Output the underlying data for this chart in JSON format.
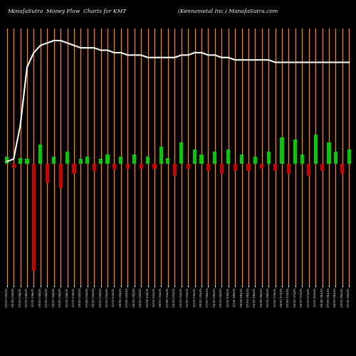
{
  "title_left": "ManafaSutra  Money Flow  Charts for KMT",
  "title_right": "(Kennametal Inc.) ManafaSutra.com",
  "background_color": "#000000",
  "bar_color_positive": "#00cc00",
  "bar_color_negative": "#cc0000",
  "line_color": "#ffffff",
  "orange_line_color": "#ff8800",
  "categories": [
    "07/07 03&05",
    "06/04 03&05",
    "03/01 04&05",
    "01/07 04&05",
    "11/05 04&05",
    "09/03 04&05",
    "07/02 04&05",
    "05/07 04&05",
    "03/05 04&05",
    "01/02 04&05",
    "11/07 03&05",
    "09/05 03&05",
    "07/04 03&05",
    "05/02 03&05",
    "03/07 03&05",
    "01/03 03&05",
    "11/01 02&05",
    "09/06 02&05",
    "07/05 02&05",
    "05/03 02&05",
    "03/01 02&05",
    "01/04 02&05",
    "11/02 01&05",
    "09/07 01&05",
    "07/06 01&05",
    "05/04 01&05",
    "03/02 01&05",
    "01/05 01&05",
    "11/03 00&05",
    "09/01 00&05",
    "07/07 99&05",
    "05/05 99&05",
    "03/03 99&05",
    "01/01 99&05",
    "11/06 98&05",
    "09/04 98&05",
    "07/03 98&05",
    "05/01 98&05",
    "03/06 98&05",
    "01/02 98&05",
    "11/07 97&05",
    "09/05 97&05",
    "07/04 97&05",
    "05/02 97&05",
    "03/07 97&05",
    "01/03 97&05",
    "11/01 96&05",
    "09/06 96&05",
    "07/05 96&05",
    "05/03 96&05",
    "03/01 96&05",
    "01/05 96&05"
  ],
  "bar_heights": [
    1.5,
    -0.8,
    1.2,
    1.0,
    -22.0,
    4.0,
    -4.0,
    1.5,
    -5.0,
    2.5,
    -2.0,
    1.0,
    1.5,
    -1.5,
    1.0,
    2.0,
    -1.2,
    1.5,
    -1.0,
    2.0,
    -1.0,
    1.5,
    -1.0,
    3.5,
    1.2,
    -2.5,
    4.5,
    -1.0,
    3.0,
    2.0,
    -1.5,
    2.5,
    -2.0,
    3.0,
    -1.5,
    2.0,
    -1.5,
    1.5,
    -1.0,
    2.5,
    -1.5,
    5.5,
    -2.0,
    5.0,
    2.0,
    -2.5,
    6.0,
    -1.5,
    4.5,
    2.5,
    -2.0,
    3.0
  ],
  "price_line": [
    0.5,
    1.0,
    8.0,
    20.0,
    23.0,
    24.5,
    25.0,
    25.5,
    25.5,
    25.0,
    24.5,
    24.0,
    24.0,
    24.0,
    23.5,
    23.5,
    23.0,
    23.0,
    22.5,
    22.5,
    22.5,
    22.0,
    22.0,
    22.0,
    22.0,
    22.0,
    22.5,
    22.5,
    23.0,
    23.0,
    22.5,
    22.5,
    22.0,
    22.0,
    21.5,
    21.5,
    21.5,
    21.5,
    21.5,
    21.5,
    21.0,
    21.0,
    21.0,
    21.0,
    21.0,
    21.0,
    21.0,
    21.0,
    21.0,
    21.0,
    21.0,
    21.0
  ],
  "figsize": [
    5.0,
    5.0
  ],
  "dpi": 100,
  "ylim_min": -25,
  "ylim_max": 28
}
